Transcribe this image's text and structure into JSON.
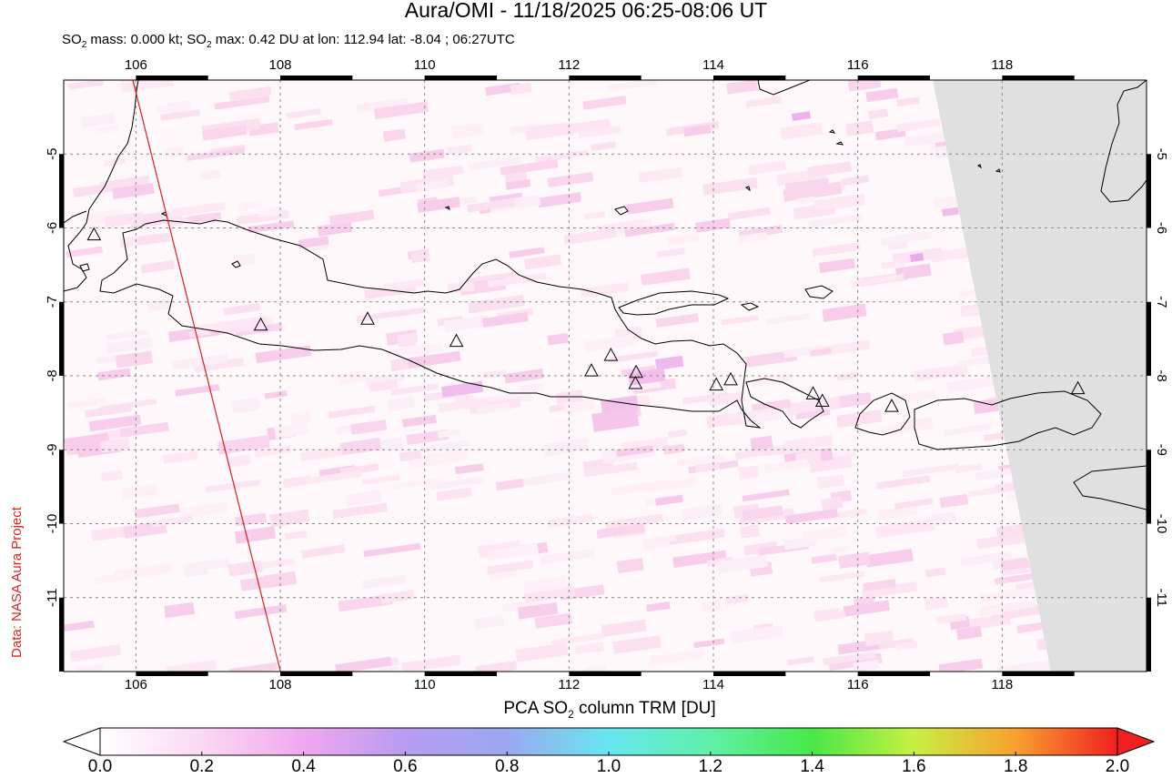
{
  "header": {
    "title": "Aura/OMI - 11/18/2025 06:25-08:06 UT",
    "subtitle_prefix": "SO",
    "subtitle_mid": " mass: 0.000 kt; SO",
    "subtitle_suffix": " max: 0.42 DU at lon: 112.94 lat: -8.04 ; 06:27UTC",
    "subscript": "2"
  },
  "credit": "Data: NASA Aura Project",
  "map": {
    "lon_range": [
      105.0,
      120.0
    ],
    "lat_range": [
      -12.0,
      -4.0
    ],
    "x_ticks": [
      "106",
      "108",
      "110",
      "112",
      "114",
      "116",
      "118"
    ],
    "y_ticks": [
      "-5",
      "-6",
      "-7",
      "-8",
      "-9",
      "-10",
      "-11"
    ],
    "x_tick_values": [
      106,
      108,
      110,
      112,
      114,
      116,
      118
    ],
    "y_tick_values": [
      -5,
      -6,
      -7,
      -8,
      -9,
      -10,
      -11
    ],
    "grid": true,
    "no_data_color": "#e0e0e0",
    "coast_color": "#000000",
    "track_color": "#d42020",
    "volcano_marker": "triangle-icon",
    "volcanoes": [
      {
        "lon": 105.42,
        "lat": -6.1
      },
      {
        "lon": 107.73,
        "lat": -7.32
      },
      {
        "lon": 109.21,
        "lat": -7.24
      },
      {
        "lon": 110.44,
        "lat": -7.54
      },
      {
        "lon": 112.31,
        "lat": -7.94
      },
      {
        "lon": 112.58,
        "lat": -7.73
      },
      {
        "lon": 112.93,
        "lat": -7.96
      },
      {
        "lon": 112.92,
        "lat": -8.11
      },
      {
        "lon": 114.04,
        "lat": -8.13
      },
      {
        "lon": 114.24,
        "lat": -8.06
      },
      {
        "lon": 115.38,
        "lat": -8.25
      },
      {
        "lon": 115.51,
        "lat": -8.35
      },
      {
        "lon": 116.47,
        "lat": -8.42
      },
      {
        "lon": 119.05,
        "lat": -8.18
      }
    ]
  },
  "colorbar": {
    "title_prefix": "PCA SO",
    "title_sub": "2",
    "title_suffix": " column TRM [DU]",
    "labels": [
      "0.0",
      "0.2",
      "0.4",
      "0.6",
      "0.8",
      "1.0",
      "1.2",
      "1.4",
      "1.6",
      "1.8",
      "2.0"
    ],
    "stops": [
      "#ffffff",
      "#fbd8f3",
      "#f0a8f0",
      "#b89cf0",
      "#9aa8f0",
      "#68e6f0",
      "#60f0a8",
      "#48e848",
      "#c8f040",
      "#f8a030",
      "#f02020"
    ]
  }
}
